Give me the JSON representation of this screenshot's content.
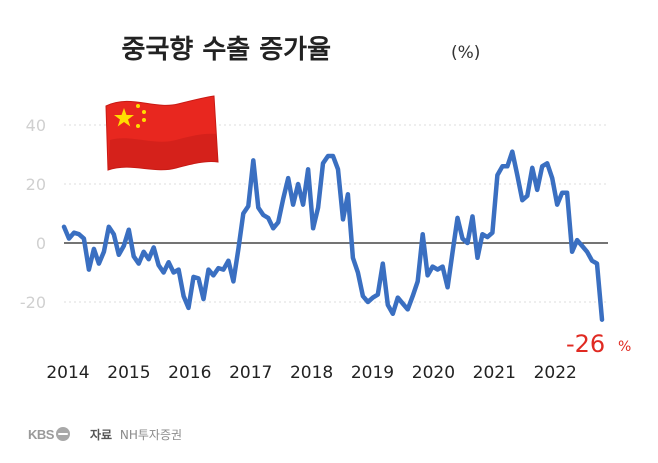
{
  "chart_data": {
    "type": "line",
    "title": "중국향 수출 증가율",
    "title_unit": "(%)",
    "y_ticks": [
      "40",
      "20",
      "0",
      "-20"
    ],
    "ylim": [
      -35,
      43
    ],
    "x_tick_labels": [
      "2014",
      "2015",
      "2016",
      "2017",
      "2018",
      "2019",
      "2020",
      "2021",
      "2022"
    ],
    "grid": true,
    "last_value_label": "-26",
    "last_value_unit": "%",
    "series": [
      {
        "color": "#3a6fc1",
        "values": [
          5.5,
          1.5,
          3.5,
          3,
          1.5,
          -9,
          -2,
          -7,
          -3,
          5.5,
          3,
          -4,
          -1,
          4.5,
          -4.5,
          -7,
          -3,
          -5.5,
          -1.5,
          -7.5,
          -10,
          -6.5,
          -10,
          -9,
          -18,
          -22,
          -11.5,
          -12,
          -19,
          -9,
          -11,
          -8.5,
          -9,
          -6,
          -13,
          -2,
          10,
          12.5,
          28,
          12,
          9.5,
          8.5,
          5,
          7,
          15,
          22,
          13,
          20,
          13,
          25,
          5,
          12,
          27,
          29.5,
          29.5,
          25,
          8,
          16.5,
          -5,
          -10,
          -18,
          -20,
          -18.5,
          -17.5,
          -7,
          -21,
          -24,
          -18.5,
          -20.5,
          -22.5,
          -18,
          -13,
          3,
          -11,
          -8,
          -9,
          -8,
          -15,
          -3,
          8.5,
          1.5,
          0,
          9,
          -5,
          3,
          2,
          3.5,
          23,
          26,
          26,
          31,
          23,
          14.5,
          16,
          25.5,
          18,
          26,
          27,
          22,
          13,
          17,
          17,
          -3,
          1,
          -1,
          -3,
          -6,
          -7,
          -26
        ]
      }
    ]
  },
  "logo": {
    "text": "KBS"
  },
  "source": {
    "label": "자료",
    "text": "NH투자증권"
  }
}
